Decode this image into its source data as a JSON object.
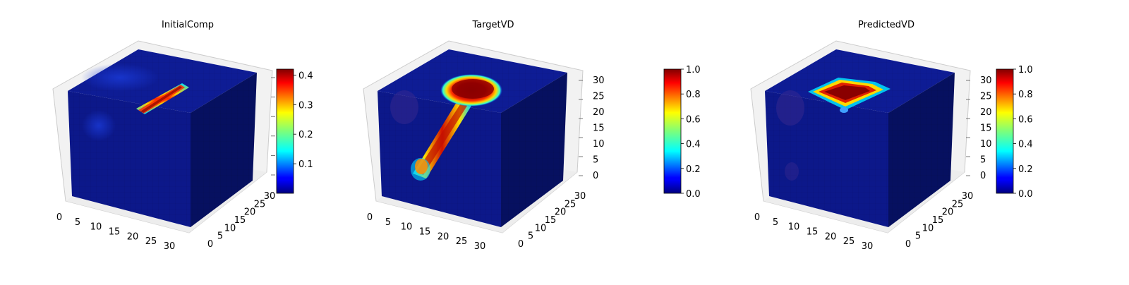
{
  "chart_data": [
    {
      "type": "heatmap",
      "title": "InitialComp",
      "x_ticks": [
        "0",
        "5",
        "10",
        "15",
        "20",
        "25",
        "30"
      ],
      "y_ticks": [
        "0",
        "5",
        "10",
        "15",
        "20",
        "25",
        "30"
      ],
      "z_ticks": [],
      "colorbar": {
        "min": 0.0,
        "max": 0.42,
        "ticks": [
          "0.1",
          "0.2",
          "0.3",
          "0.4"
        ],
        "tick_values": [
          0.1,
          0.2,
          0.3,
          0.4
        ]
      },
      "colormap": "jet"
    },
    {
      "type": "heatmap",
      "title": "TargetVD",
      "x_ticks": [
        "0",
        "5",
        "10",
        "15",
        "20",
        "25",
        "30"
      ],
      "y_ticks": [
        "0",
        "5",
        "10",
        "15",
        "20",
        "25",
        "30"
      ],
      "z_ticks": [
        "0",
        "5",
        "10",
        "15",
        "20",
        "25",
        "30"
      ],
      "colorbar": {
        "min": 0.0,
        "max": 1.0,
        "ticks": [
          "0.0",
          "0.2",
          "0.4",
          "0.6",
          "0.8",
          "1.0"
        ],
        "tick_values": [
          0.0,
          0.2,
          0.4,
          0.6,
          0.8,
          1.0
        ]
      },
      "colormap": "jet"
    },
    {
      "type": "heatmap",
      "title": "PredictedVD",
      "x_ticks": [
        "0",
        "5",
        "10",
        "15",
        "20",
        "25",
        "30"
      ],
      "y_ticks": [
        "0",
        "5",
        "10",
        "15",
        "20",
        "25",
        "30"
      ],
      "z_ticks": [
        "0",
        "5",
        "10",
        "15",
        "20",
        "25",
        "30"
      ],
      "colorbar": {
        "min": 0.0,
        "max": 1.0,
        "ticks": [
          "0.0",
          "0.2",
          "0.4",
          "0.6",
          "0.8",
          "1.0"
        ],
        "tick_values": [
          0.0,
          0.2,
          0.4,
          0.6,
          0.8,
          1.0
        ]
      },
      "colormap": "jet"
    }
  ],
  "colors": {
    "cube_base": "#0d1a8f",
    "cube_side": "#061060",
    "axes_pane": "#f2f2f2",
    "grid": "#d9d9d9"
  }
}
